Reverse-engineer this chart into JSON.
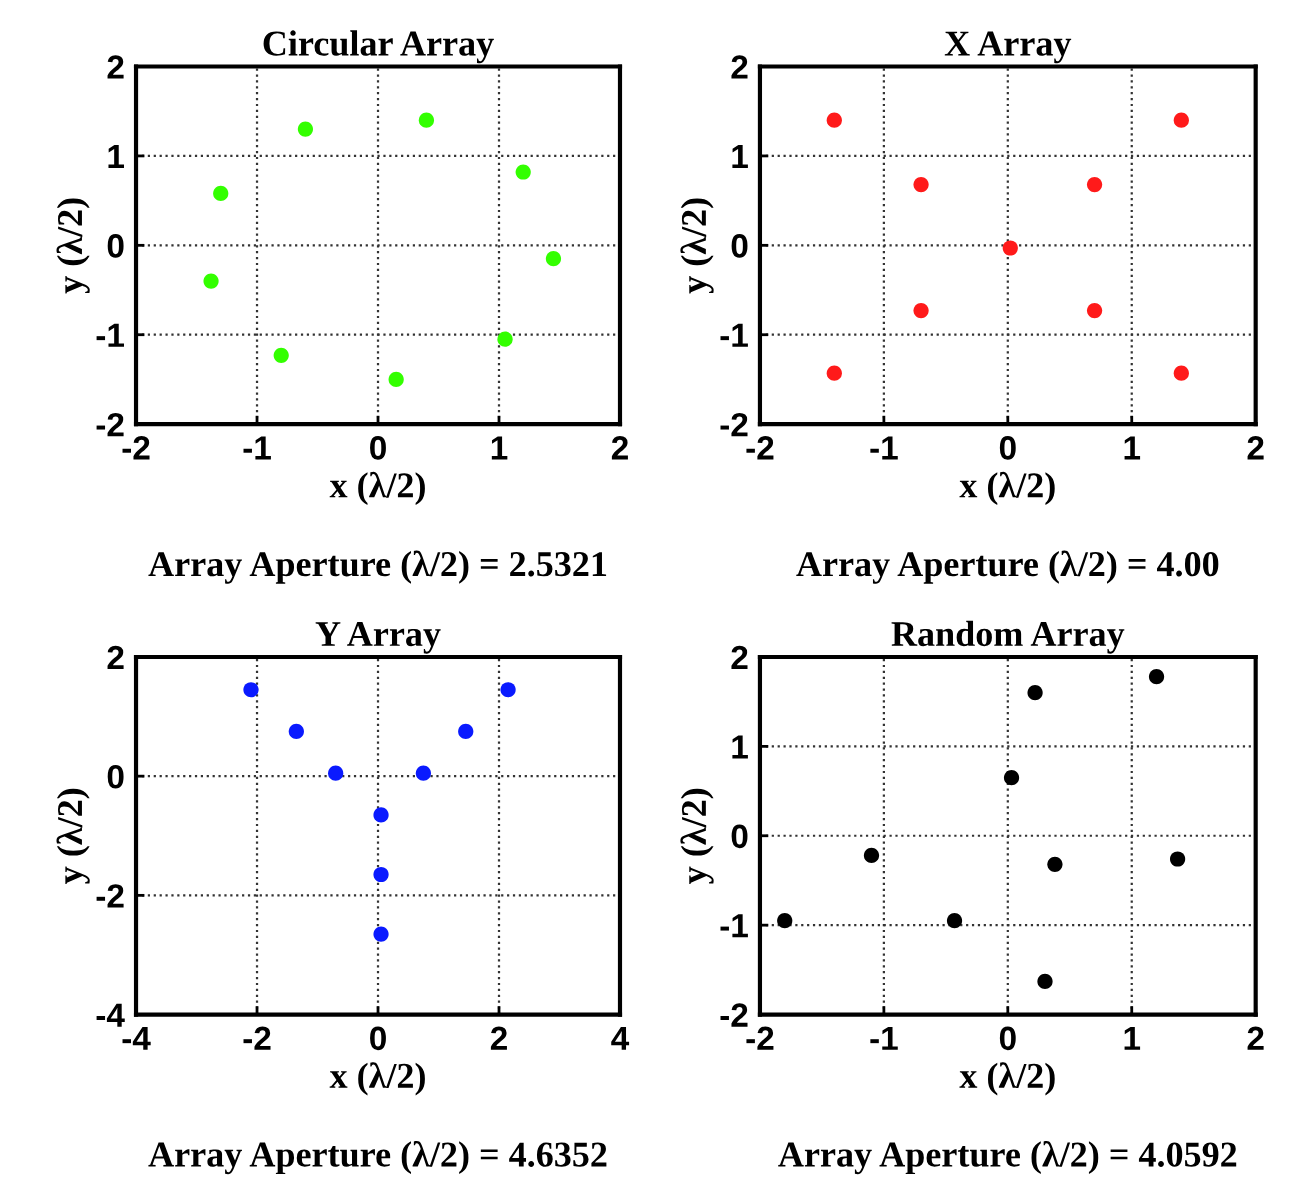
{
  "chart_data": [
    {
      "type": "scatter",
      "title": "Circular Array",
      "xlabel": "x (λ/2)",
      "ylabel": "y (λ/2)",
      "annotations": [
        "Array Aperture (λ/2) = 2.5321"
      ],
      "x": [
        -0.6,
        0.4,
        1.2,
        1.45,
        1.05,
        0.15,
        -0.8,
        -1.38,
        -1.3
      ],
      "series": [
        {
          "color": "#33ff00",
          "values": [
            1.3,
            1.4,
            0.82,
            -0.15,
            -1.05,
            -1.5,
            -1.23,
            -0.4,
            0.58
          ]
        }
      ],
      "xlim": [
        -2,
        2
      ],
      "ylim": [
        -2,
        2
      ],
      "xticks": [
        -2,
        -1,
        0,
        1,
        2
      ],
      "yticks": [
        -2,
        -1,
        0,
        1,
        2
      ],
      "grid": true,
      "marker": "circle"
    },
    {
      "type": "scatter",
      "title": "X Array",
      "xlabel": "x (λ/2)",
      "ylabel": "y (λ/2)",
      "annotations": [
        "Array Aperture (λ/2) = 4.00"
      ],
      "x": [
        -1.4,
        1.4,
        -0.7,
        0.7,
        0.02,
        -0.7,
        0.7,
        -1.4,
        1.4
      ],
      "series": [
        {
          "color": "#ff1a1a",
          "values": [
            1.4,
            1.4,
            0.68,
            0.68,
            -0.03,
            -0.73,
            -0.73,
            -1.43,
            -1.43
          ]
        }
      ],
      "xlim": [
        -2,
        2
      ],
      "ylim": [
        -2,
        2
      ],
      "xticks": [
        -2,
        -1,
        0,
        1,
        2
      ],
      "yticks": [
        -2,
        -1,
        0,
        1,
        2
      ],
      "grid": true,
      "marker": "circle"
    },
    {
      "type": "scatter",
      "title": "Y Array",
      "xlabel": "x (λ/2)",
      "ylabel": "y (λ/2)",
      "annotations": [
        "Array Aperture (λ/2) = 4.6352"
      ],
      "x": [
        -2.1,
        -1.35,
        -0.7,
        0.75,
        1.45,
        2.15,
        0.05,
        0.05,
        0.05
      ],
      "series": [
        {
          "color": "#0a1aff",
          "values": [
            1.45,
            0.75,
            0.05,
            0.05,
            0.75,
            1.45,
            -0.65,
            -1.65,
            -2.65
          ]
        }
      ],
      "xlim": [
        -4,
        4
      ],
      "ylim": [
        -4,
        2
      ],
      "xticks": [
        -4,
        -2,
        0,
        2,
        4
      ],
      "yticks": [
        -4,
        -2,
        0,
        2
      ],
      "grid": true,
      "marker": "circle"
    },
    {
      "type": "scatter",
      "title": "Random Array",
      "xlabel": "x (λ/2)",
      "ylabel": "y (λ/2)",
      "annotations": [
        "Array Aperture (λ/2) = 4.0592"
      ],
      "x": [
        -1.8,
        -1.1,
        -0.43,
        0.03,
        0.22,
        0.3,
        0.38,
        1.2,
        1.37
      ],
      "series": [
        {
          "color": "#000000",
          "values": [
            -0.95,
            -0.22,
            -0.95,
            0.65,
            1.6,
            -1.63,
            -0.32,
            1.78,
            -0.26
          ]
        }
      ],
      "xlim": [
        -2,
        2
      ],
      "ylim": [
        -2,
        2
      ],
      "xticks": [
        -2,
        -1,
        0,
        1,
        2
      ],
      "yticks": [
        -2,
        -1,
        0,
        1,
        2
      ],
      "grid": true,
      "marker": "circle"
    }
  ]
}
